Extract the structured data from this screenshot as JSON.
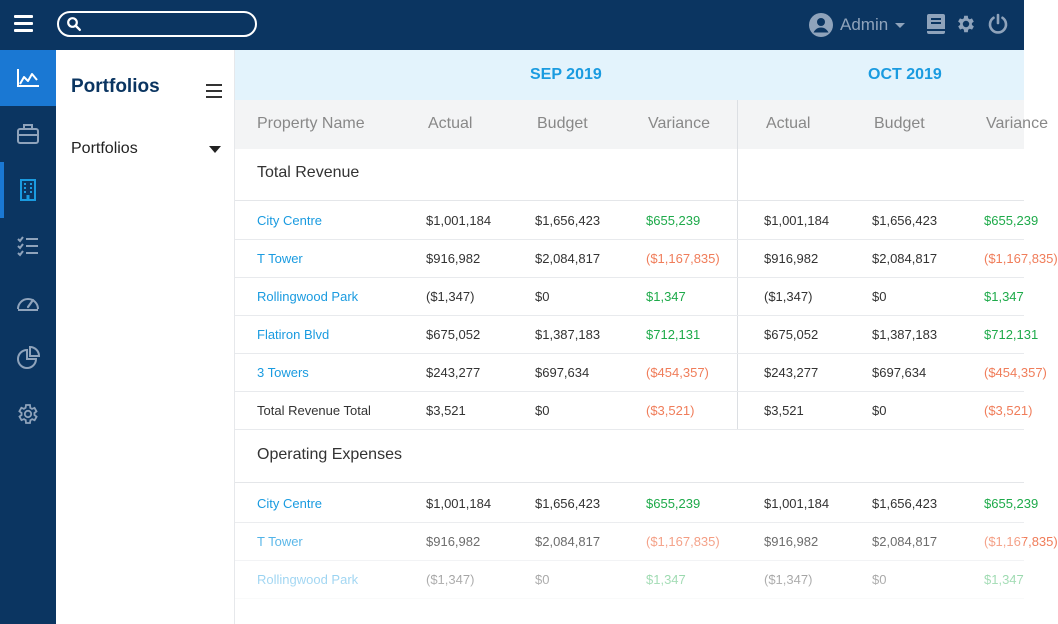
{
  "topbar": {
    "search_placeholder": "",
    "user_label": "Admin"
  },
  "nav": {
    "items": [
      {
        "icon": "chart-icon"
      },
      {
        "icon": "briefcase-icon"
      },
      {
        "icon": "building-icon"
      },
      {
        "icon": "checklist-icon"
      },
      {
        "icon": "gauge-icon"
      },
      {
        "icon": "pie-chart-icon"
      },
      {
        "icon": "gear-icon"
      }
    ]
  },
  "sidepanel": {
    "title": "Portfolios",
    "select_value": "Portfolios"
  },
  "table": {
    "months": [
      "SEP 2019",
      "OCT 2019"
    ],
    "columns": [
      "Property Name",
      "Actual",
      "Budget",
      "Variance",
      "Actual",
      "Budget",
      "Variance"
    ],
    "sections": [
      {
        "label": "Total Revenue",
        "rows": [
          {
            "name": "City Centre",
            "values": [
              "$1,001,184",
              "$1,656,423",
              "$655,239",
              "$1,001,184",
              "$1,656,423",
              "$655,239"
            ]
          },
          {
            "name": "T Tower",
            "values": [
              "$916,982",
              "$2,084,817",
              "($1,167,835)",
              "$916,982",
              "$2,084,817",
              "($1,167,835)"
            ]
          },
          {
            "name": "Rollingwood Park",
            "values": [
              "($1,347)",
              "$0",
              "$1,347",
              "($1,347)",
              "$0",
              "$1,347"
            ]
          },
          {
            "name": "Flatiron Blvd",
            "values": [
              "$675,052",
              "$1,387,183",
              "$712,131",
              "$675,052",
              "$1,387,183",
              "$712,131"
            ]
          },
          {
            "name": "3 Towers",
            "values": [
              "$243,277",
              "$697,634",
              "($454,357)",
              "$243,277",
              "$697,634",
              "($454,357)"
            ]
          },
          {
            "name": "Total Revenue Total",
            "values": [
              "$3,521",
              "$0",
              "($3,521)",
              "$3,521",
              "$0",
              "($3,521)"
            ]
          }
        ]
      },
      {
        "label": "Operating Expenses",
        "rows": [
          {
            "name": "City Centre",
            "values": [
              "$1,001,184",
              "$1,656,423",
              "$655,239",
              "$1,001,184",
              "$1,656,423",
              "$655,239"
            ]
          },
          {
            "name": "T Tower",
            "values": [
              "$916,982",
              "$2,084,817",
              "($1,167,835)",
              "$916,982",
              "$2,084,817",
              "($1,167,835)"
            ]
          },
          {
            "name": "Rollingwood Park",
            "values": [
              "($1,347)",
              "$0",
              "$1,347",
              "($1,347)",
              "$0",
              "$1,347"
            ]
          }
        ]
      }
    ]
  },
  "colors": {
    "navy": "#0b3561",
    "accent_blue": "#1a9be0",
    "positive": "#1eaa4a",
    "negative": "#f07d5a"
  }
}
